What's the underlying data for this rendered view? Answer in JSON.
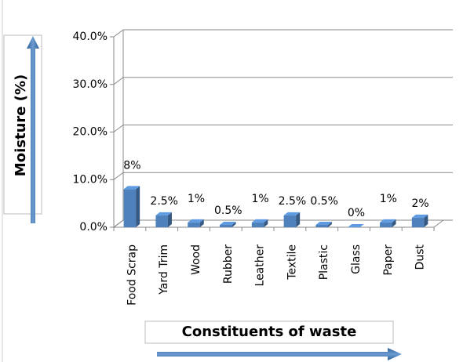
{
  "chart_data": {
    "type": "bar",
    "y_axis_label": "Moisture (%)",
    "x_axis_label": "Constituents of waste",
    "categories": [
      "Food Scrap",
      "Yard Trim",
      "Wood",
      "Rubber",
      "Leather",
      "Textile",
      "Plastic",
      "Glass",
      "Paper",
      "Dust"
    ],
    "values": [
      8,
      2.5,
      1,
      0.5,
      1,
      2.5,
      0.5,
      0,
      1,
      2
    ],
    "value_labels": [
      "8%",
      "2.5%",
      "1%",
      "0.5%",
      "1%",
      "2.5%",
      "0.5%",
      "0%",
      "1%",
      "2%"
    ],
    "color": "#4f81bd",
    "ylim": [
      0,
      40
    ],
    "yticks": [
      {
        "value": 0,
        "label": "0.0%"
      },
      {
        "value": 10,
        "label": "10.0%"
      },
      {
        "value": 20,
        "label": "20.0%"
      },
      {
        "value": 30,
        "label": "30.0%"
      },
      {
        "value": 40,
        "label": "40.0%"
      }
    ],
    "grid": true
  }
}
